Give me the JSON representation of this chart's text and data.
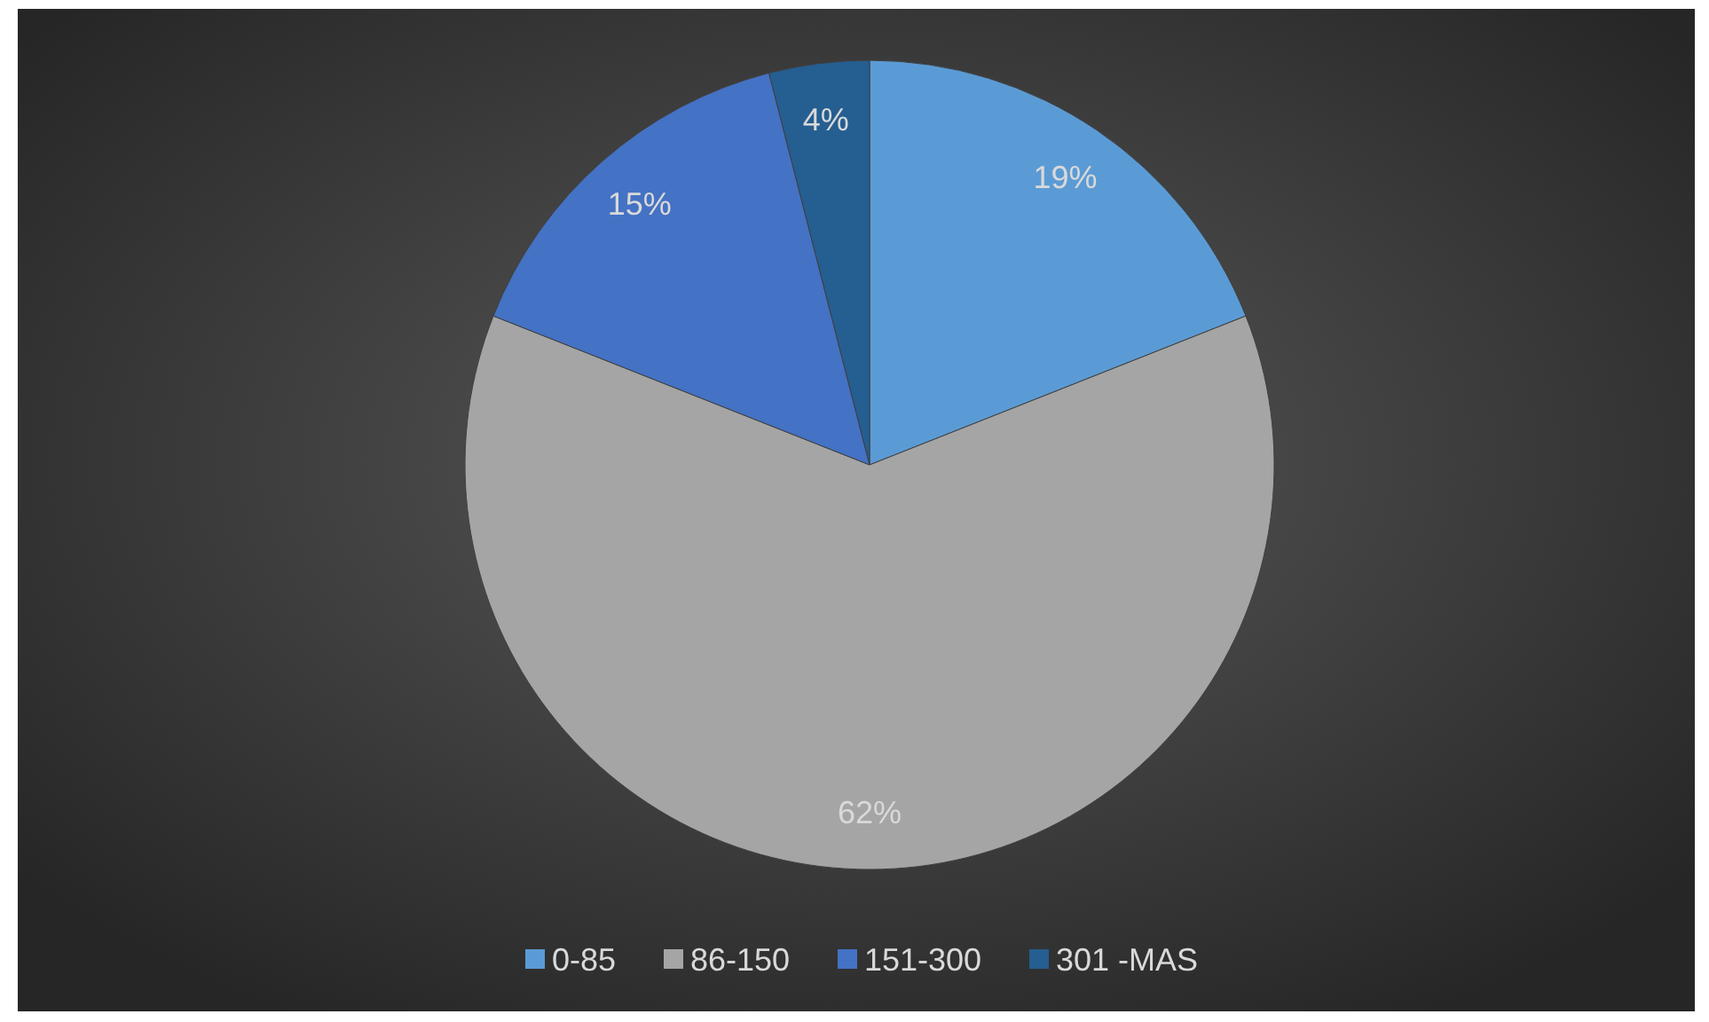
{
  "chart_data": {
    "type": "pie",
    "categories": [
      "0-85",
      "86-150",
      "151-300",
      "301 -MAS"
    ],
    "values": [
      19,
      62,
      15,
      4
    ],
    "colors": [
      "#5b9bd5",
      "#a5a5a5",
      "#4472c4",
      "#255e91"
    ],
    "value_labels": [
      "19%",
      "62%",
      "15%",
      "4%"
    ],
    "legend": "bottom"
  }
}
